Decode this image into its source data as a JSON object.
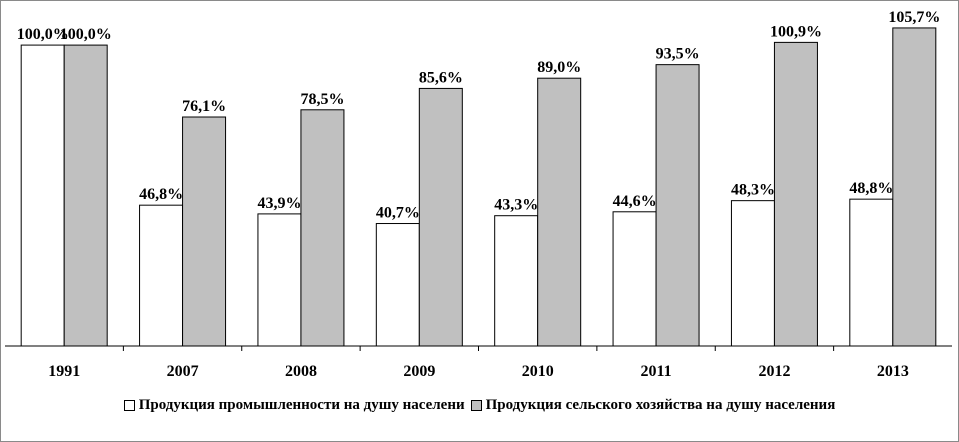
{
  "chart_data": {
    "type": "bar",
    "categories": [
      "1991",
      "2007",
      "2008",
      "2009",
      "2010",
      "2011",
      "2012",
      "2013"
    ],
    "series": [
      {
        "name": "Продукция промышленности на душу населени",
        "values": [
          100.0,
          46.8,
          43.9,
          40.7,
          43.3,
          44.6,
          48.3,
          48.8
        ],
        "labels": [
          "100,0%",
          "46,8%",
          "43,9%",
          "40,7%",
          "43,3%",
          "44,6%",
          "48,3%",
          "48,8%"
        ],
        "color": "#ffffff"
      },
      {
        "name": "Продукция сельского хозяйства на душу населения",
        "values": [
          100.0,
          76.1,
          78.5,
          85.6,
          89.0,
          93.5,
          100.9,
          105.7
        ],
        "labels": [
          "100,0%",
          "76,1%",
          "78,5%",
          "85,6%",
          "89,0%",
          "93,5%",
          "100,9%",
          "105,7%"
        ],
        "color": "#c0c0c0"
      }
    ],
    "ylim": [
      0,
      110
    ],
    "grid": false,
    "legend_position": "bottom"
  }
}
